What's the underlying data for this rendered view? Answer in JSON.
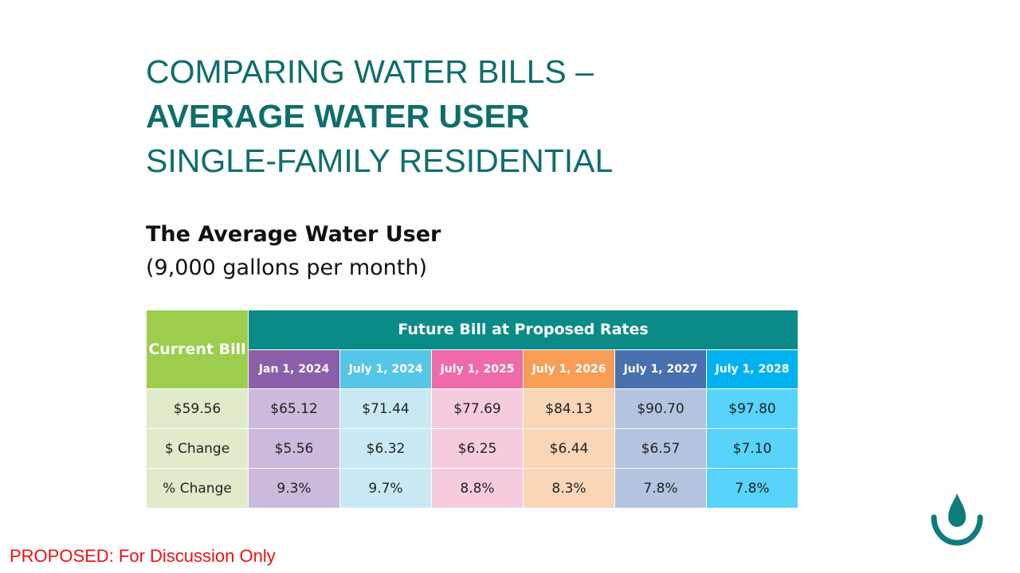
{
  "title": {
    "line1": "COMPARING WATER BILLS –",
    "line2": "AVERAGE WATER USER",
    "line3": "SINGLE-FAMILY RESIDENTIAL"
  },
  "subtitle": {
    "line1": "The Average Water User",
    "line2": "(9,000 gallons per month)"
  },
  "table": {
    "current_header": "Current Bill",
    "future_header": "Future Bill at Proposed Rates",
    "dates": [
      "Jan 1, 2024",
      "July 1, 2024",
      "July 1, 2025",
      "July 1, 2026",
      "July 1, 2027",
      "July 1, 2028"
    ],
    "rows": [
      {
        "label": "$59.56",
        "values": [
          "$65.12",
          "$71.44",
          "$77.69",
          "$84.13",
          "$90.70",
          "$97.80"
        ]
      },
      {
        "label": "$ Change",
        "values": [
          "$5.56",
          "$6.32",
          "$6.25",
          "$6.44",
          "$6.57",
          "$7.10"
        ]
      },
      {
        "label": "% Change",
        "values": [
          "9.3%",
          "9.7%",
          "8.8%",
          "8.3%",
          "7.8%",
          "7.8%"
        ]
      }
    ],
    "colors": {
      "current_header": "#9ccd4c",
      "future_header": "#0b8b87",
      "column_headers": [
        "#8b5fa9",
        "#55c5e8",
        "#ef6aa8",
        "#f79d55",
        "#4870ae",
        "#00b2f0"
      ]
    }
  },
  "footer": {
    "proposed_note": "PROPOSED: For Discussion Only"
  },
  "logo": {
    "icon": "water-drop-icon",
    "color": "#0e7b7d"
  }
}
